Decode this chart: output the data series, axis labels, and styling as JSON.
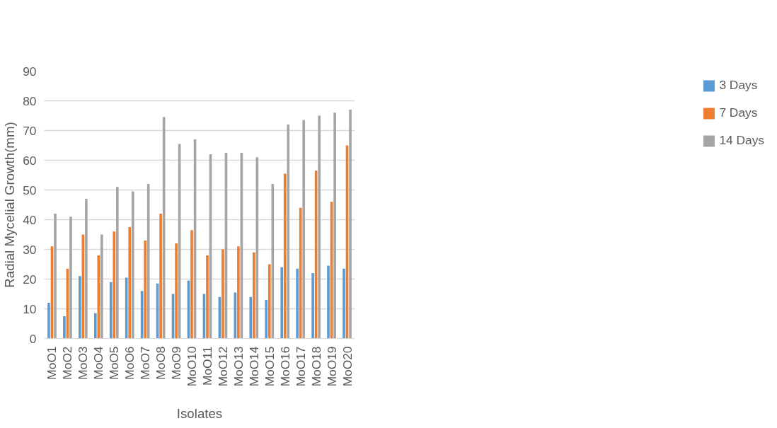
{
  "chart_data": {
    "type": "bar",
    "xlabel": "Isolates",
    "ylabel": "Radial Mycelial Growth(mm)",
    "categories": [
      "MoO1",
      "MoO2",
      "MoO3",
      "MoO4",
      "MoO5",
      "MoO6",
      "MoO7",
      "MoO8",
      "MoO9",
      "MoO10",
      "MoO11",
      "MoO12",
      "MoO13",
      "MoO14",
      "MoO15",
      "MoO16",
      "MoO17",
      "MoO18",
      "MoO19",
      "MoO20"
    ],
    "series": [
      {
        "name": "3 Days",
        "color": "#5b9bd5",
        "values": [
          12,
          7.5,
          21,
          8.5,
          19,
          20.5,
          16,
          18.5,
          15,
          19.5,
          15,
          14,
          15.5,
          14,
          13,
          24,
          23.5,
          22,
          24.5,
          23.5
        ]
      },
      {
        "name": "7 Days",
        "color": "#ed7d31",
        "values": [
          31,
          23.5,
          35,
          28,
          36,
          37.5,
          33,
          42,
          32,
          36.5,
          28,
          30,
          31,
          29,
          25,
          55.5,
          44,
          56.5,
          46,
          65
        ]
      },
      {
        "name": "14 Days",
        "color": "#a5a5a5",
        "values": [
          42,
          41,
          47,
          35,
          51,
          49.5,
          52,
          74.5,
          65.5,
          67,
          62,
          62.5,
          62.5,
          61,
          52,
          72,
          73.5,
          75,
          76,
          77
        ]
      }
    ],
    "ylim": [
      0,
      90
    ],
    "yticks": [
      0,
      10,
      20,
      30,
      40,
      50,
      60,
      70,
      80,
      90
    ],
    "grid": "y",
    "legend": "right"
  }
}
